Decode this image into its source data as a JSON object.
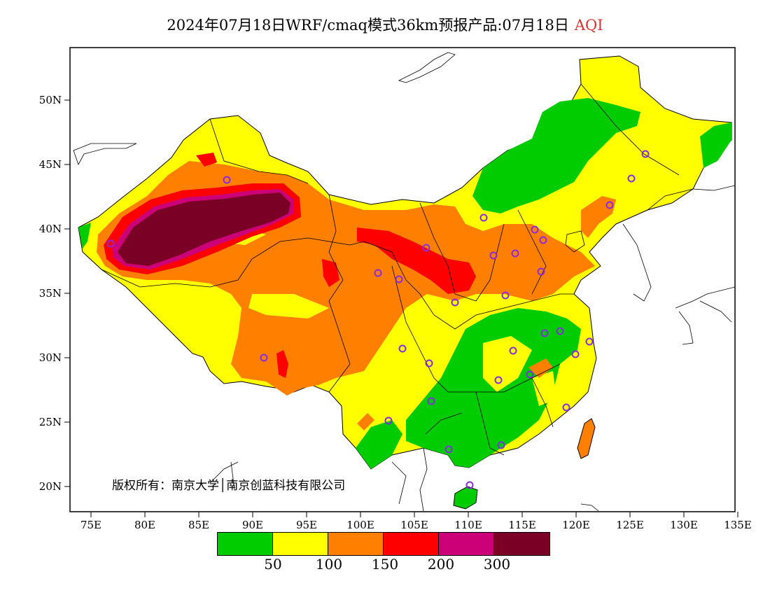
{
  "title": {
    "main": "2024年07月18日WRF/cmaq模式36km预报产品:07月18日",
    "variable": "AQI"
  },
  "axes": {
    "lon_ticks": [
      "75E",
      "80E",
      "85E",
      "90E",
      "95E",
      "100E",
      "105E",
      "110E",
      "115E",
      "120E",
      "125E",
      "130E",
      "135E"
    ],
    "lat_ticks": [
      "50N",
      "45N",
      "40N",
      "35N",
      "30N",
      "25N",
      "20N"
    ]
  },
  "legend": {
    "colors": [
      "#00cc00",
      "#ffff00",
      "#ff7f00",
      "#ff0000",
      "#cc0077",
      "#7a0026"
    ],
    "thresholds": [
      "50",
      "100",
      "150",
      "200",
      "300"
    ]
  },
  "copyright": "版权所有：南京大学│南京创蓝科技有限公司",
  "colors": {
    "good": "#00cc00",
    "moderate": "#ffff00",
    "usg": "#ff7f00",
    "unhealthy": "#ff0000",
    "very_unhealthy": "#cc0077",
    "hazardous": "#7a0026",
    "station_marker": "#8a2be2",
    "title_accent": "#e03030"
  }
}
